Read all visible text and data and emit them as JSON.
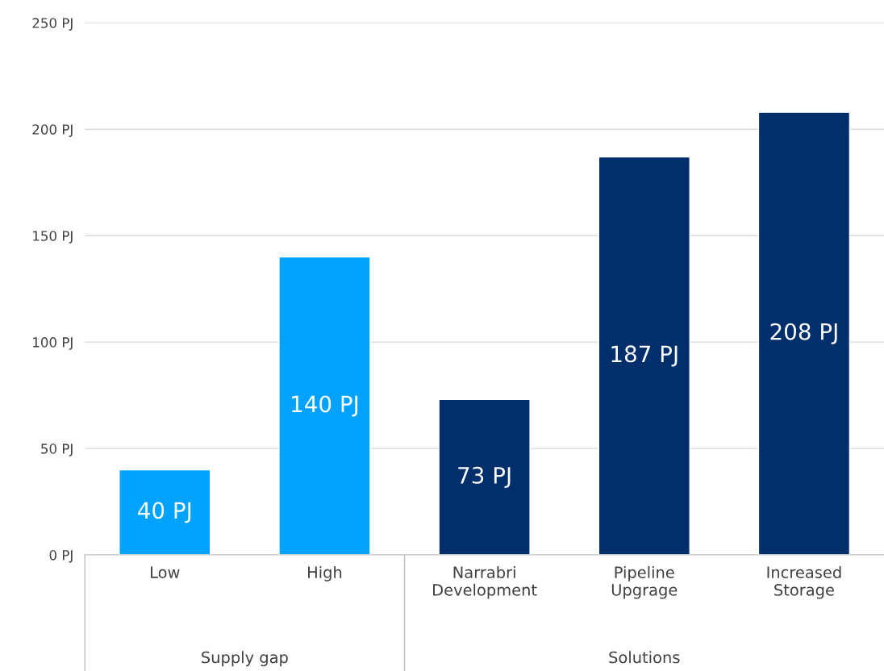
{
  "chart_data": {
    "type": "bar",
    "categories": [
      "Low",
      "High",
      "Narrabri Development",
      "Pipeline Upgrage",
      "Increased Storage"
    ],
    "values": [
      40,
      140,
      73,
      187,
      208
    ],
    "colors": [
      "#00a2ff",
      "#00a2ff",
      "#002f6c",
      "#002f6c",
      "#002f6c"
    ],
    "value_labels": [
      "40 PJ",
      "140 PJ",
      "73 PJ",
      "187 PJ",
      "208 PJ"
    ],
    "ylim": [
      0,
      250
    ],
    "yticks": [
      {
        "value": 0,
        "label": "0 PJ"
      },
      {
        "value": 50,
        "label": "50 PJ"
      },
      {
        "value": 100,
        "label": "100 PJ"
      },
      {
        "value": 150,
        "label": "150 PJ"
      },
      {
        "value": 200,
        "label": "200 PJ"
      },
      {
        "value": 250,
        "label": "250 PJ"
      }
    ],
    "grid": "y",
    "annotations": [
      "Supply gap",
      "Solutions"
    ]
  }
}
